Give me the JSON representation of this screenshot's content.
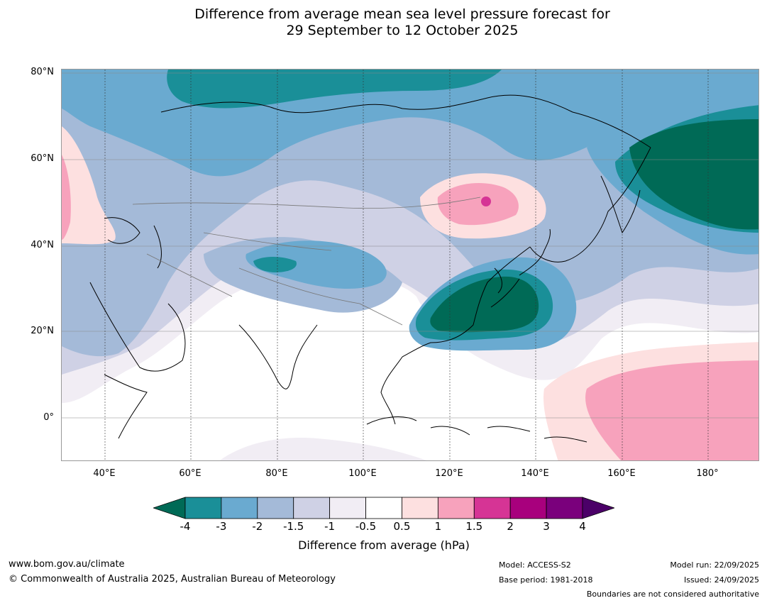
{
  "title_line1": "Difference from average mean sea level pressure forecast for",
  "title_line2": "29 September to 12 October 2025",
  "map": {
    "lat_labels": [
      "80°N",
      "60°N",
      "40°N",
      "20°N",
      "0°"
    ],
    "lon_labels": [
      "40°E",
      "60°E",
      "80°E",
      "100°E",
      "120°E",
      "140°E",
      "160°E",
      "180°"
    ],
    "extent": {
      "lon_min": 30,
      "lon_max": 192,
      "lat_min": -10,
      "lat_max": 80
    }
  },
  "colorbar": {
    "title": "Difference from average (hPa)",
    "ticks": [
      "-4",
      "-3",
      "-2",
      "-1.5",
      "-1",
      "-0.5",
      "0.5",
      "1",
      "1.5",
      "2",
      "3",
      "4"
    ],
    "colors": [
      "#006a56",
      "#1a8f98",
      "#6aaad0",
      "#a4bad8",
      "#cfd1e5",
      "#f1edf4",
      "#ffffff",
      "#fde0e0",
      "#f7a2bc",
      "#d63495",
      "#a8007d",
      "#7a007c",
      "#4b0068"
    ]
  },
  "footer": {
    "website": "www.bom.gov.au/climate",
    "copyright": "© Commonwealth of Australia 2025, Australian Bureau of Meteorology",
    "model": "Model: ACCESS-S2",
    "base_period": "Base period: 1981-2018",
    "model_run": "Model run: 22/09/2025",
    "issued": "Issued: 24/09/2025",
    "disclaimer": "Boundaries are not considered authoritative"
  }
}
